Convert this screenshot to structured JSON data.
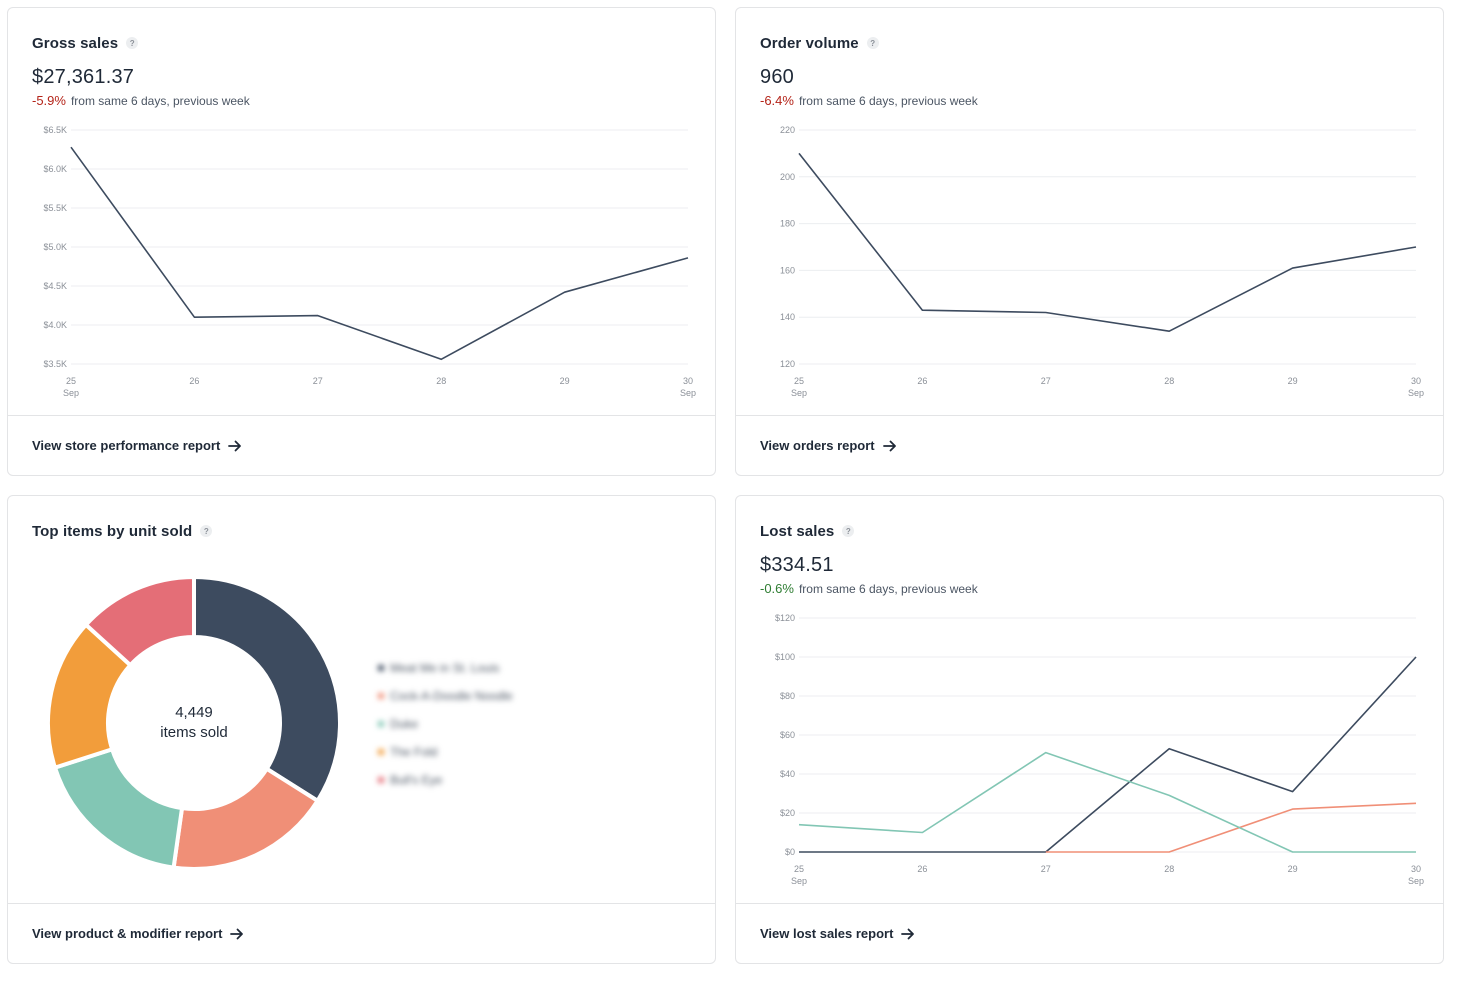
{
  "cards": {
    "gross_sales": {
      "title": "Gross sales",
      "help": "?",
      "value": "$27,361.37",
      "delta": "-5.9%",
      "delta_text": "from same 6 days, previous week",
      "delta_color": "#b42318",
      "link": "View store performance report"
    },
    "order_volume": {
      "title": "Order volume",
      "help": "?",
      "value": "960",
      "delta": "-6.4%",
      "delta_text": "from same 6 days, previous week",
      "delta_color": "#b42318",
      "link": "View orders report"
    },
    "top_items": {
      "title": "Top items by unit sold",
      "help": "?",
      "center_value": "4,449",
      "center_label": "items sold",
      "legend": [
        "Meat Me in St. Louis",
        "Cock-A-Doodle Noodle",
        "Duke",
        "The Fold",
        "Bull's Eye"
      ],
      "link": "View product & modifier report"
    },
    "lost_sales": {
      "title": "Lost sales",
      "help": "?",
      "value": "$334.51",
      "delta": "-0.6%",
      "delta_text": "from same 6 days, previous week",
      "delta_color": "#2e7d32",
      "link": "View lost sales report"
    }
  },
  "icons": {
    "help": "help-circle-icon",
    "arrow": "arrow-right-icon"
  },
  "colors": {
    "line": "#3d4b5f",
    "grid": "#eceef0",
    "slate": "#3d4b5f",
    "salmon": "#f08f77",
    "teal": "#82c6b4",
    "orange": "#f29d3b",
    "pink": "#e46e77"
  },
  "chart_data": [
    {
      "type": "line",
      "title": "Gross sales",
      "x": [
        "25 Sep",
        "26",
        "27",
        "28",
        "29",
        "30 Sep"
      ],
      "y_ticks": [
        "$3.5K",
        "$4.0K",
        "$4.5K",
        "$5.0K",
        "$5.5K",
        "$6.0K",
        "$6.5K"
      ],
      "ylim": [
        3500,
        6500
      ],
      "series": [
        {
          "values": [
            6280,
            4100,
            4120,
            3560,
            4420,
            4860
          ]
        }
      ],
      "grid": true
    },
    {
      "type": "line",
      "title": "Order volume",
      "x": [
        "25 Sep",
        "26",
        "27",
        "28",
        "29",
        "30 Sep"
      ],
      "y_ticks": [
        "120",
        "140",
        "160",
        "180",
        "200",
        "220"
      ],
      "ylim": [
        120,
        220
      ],
      "series": [
        {
          "values": [
            210,
            143,
            142,
            134,
            161,
            170
          ]
        }
      ],
      "grid": true
    },
    {
      "type": "pie",
      "title": "Top items by unit sold",
      "series": [
        {
          "values": [
            1485,
            800,
            780,
            730,
            580
          ]
        }
      ]
    },
    {
      "type": "line",
      "title": "Lost sales",
      "x": [
        "25 Sep",
        "26",
        "27",
        "28",
        "29",
        "30 Sep"
      ],
      "y_ticks": [
        "$0",
        "$20",
        "$40",
        "$60",
        "$80",
        "$100",
        "$120"
      ],
      "ylim": [
        0,
        120
      ],
      "series": [
        {
          "values": [
            0,
            0,
            0,
            53,
            31,
            100
          ]
        },
        {
          "values": [
            null,
            null,
            0,
            0,
            22,
            25
          ]
        },
        {
          "values": [
            14,
            10,
            51,
            29,
            0,
            0
          ]
        }
      ],
      "grid": true
    }
  ]
}
